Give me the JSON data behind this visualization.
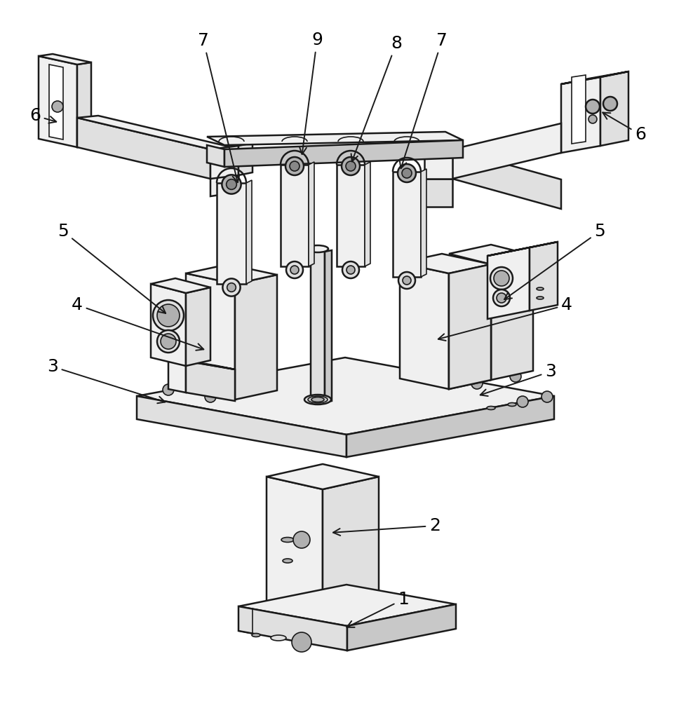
{
  "background_color": "#ffffff",
  "line_color": "#1a1a1a",
  "fill_light": "#f0f0f0",
  "fill_mid": "#e0e0e0",
  "fill_dark": "#c8c8c8",
  "fill_darker": "#b0b0b0",
  "lw_main": 1.8,
  "lw_thin": 1.2,
  "figsize": [
    9.88,
    10.0
  ],
  "dpi": 100,
  "annotation_fontsize": 18
}
